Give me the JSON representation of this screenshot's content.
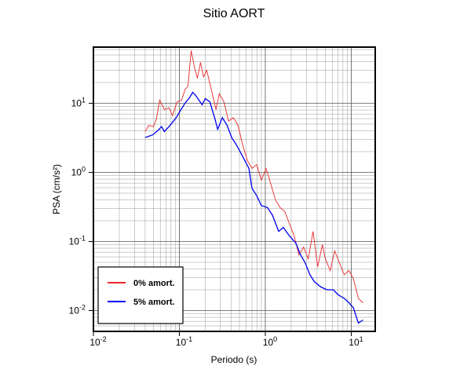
{
  "chart_data": {
    "type": "line",
    "title": "Sitio AORT",
    "x_label": "Periodo (s)",
    "y_label": "PSA (cm/s²)",
    "log_x": true,
    "log_y": true,
    "grid": true,
    "minor_grid": true,
    "legend": "lower left",
    "xlim": [
      0.01,
      19
    ],
    "ylim": [
      0.005,
      65
    ],
    "xticks": [
      {
        "value": 0.01,
        "label": "10",
        "exponent": "-2"
      },
      {
        "value": 0.1,
        "label": "10",
        "exponent": "-1"
      },
      {
        "value": 1,
        "label": "10",
        "exponent": "0"
      },
      {
        "value": 10,
        "label": "10",
        "exponent": "1"
      }
    ],
    "yticks": [
      {
        "value": 0.01,
        "label": "10",
        "exponent": "-2"
      },
      {
        "value": 0.1,
        "label": "10",
        "exponent": "-1"
      },
      {
        "value": 1,
        "label": "10",
        "exponent": "0"
      },
      {
        "value": 10,
        "label": "10",
        "exponent": "1"
      }
    ],
    "series": [
      {
        "name": "0% amort.",
        "color": "#e8282a",
        "x": [
          0.04,
          0.044,
          0.05,
          0.054,
          0.059,
          0.067,
          0.076,
          0.083,
          0.094,
          0.106,
          0.116,
          0.126,
          0.137,
          0.149,
          0.162,
          0.176,
          0.191,
          0.208,
          0.236,
          0.267,
          0.291,
          0.33,
          0.374,
          0.424,
          0.481,
          0.545,
          0.618,
          0.7,
          0.794,
          0.9,
          1.02,
          1.16,
          1.31,
          1.49,
          1.69,
          1.91,
          2.17,
          2.46,
          2.79,
          3.16,
          3.59,
          4.07,
          4.61,
          5.0,
          5.7,
          6.4,
          7.3,
          8.3,
          9.4,
          10.6,
          12.1,
          13.7
        ],
        "values": [
          3.9,
          4.8,
          4.6,
          5.9,
          11.1,
          8.1,
          8.6,
          6.6,
          10.5,
          11.1,
          15.6,
          17.8,
          58,
          34,
          23,
          39,
          24,
          30,
          15.6,
          8.1,
          13.7,
          10.5,
          5.5,
          6.2,
          4.8,
          2.5,
          1.48,
          1.14,
          1.3,
          0.77,
          1.14,
          0.68,
          0.4,
          0.31,
          0.27,
          0.18,
          0.12,
          0.064,
          0.083,
          0.056,
          0.14,
          0.043,
          0.09,
          0.056,
          0.038,
          0.073,
          0.049,
          0.033,
          0.038,
          0.029,
          0.015,
          0.013
        ]
      },
      {
        "name": "5% amort.",
        "color": "#0000ee",
        "x": [
          0.04,
          0.049,
          0.057,
          0.062,
          0.067,
          0.076,
          0.083,
          0.092,
          0.102,
          0.116,
          0.131,
          0.143,
          0.155,
          0.169,
          0.184,
          0.2,
          0.226,
          0.257,
          0.279,
          0.316,
          0.359,
          0.406,
          0.461,
          0.545,
          0.644,
          0.7,
          0.794,
          0.9,
          1.06,
          1.21,
          1.43,
          1.62,
          1.91,
          2.26,
          2.57,
          2.91,
          3.3,
          3.74,
          4.42,
          5.2,
          6.2,
          7.0,
          8.3,
          9.4,
          10.6,
          12.1,
          13.7
        ],
        "values": [
          3.2,
          3.5,
          4.1,
          4.6,
          3.9,
          4.6,
          5.3,
          6.2,
          7.7,
          10,
          12,
          14.4,
          13,
          11.1,
          9.5,
          11.7,
          10.5,
          6.2,
          4.2,
          6.2,
          4.8,
          3.2,
          2.5,
          1.7,
          1.14,
          0.59,
          0.46,
          0.33,
          0.31,
          0.24,
          0.14,
          0.16,
          0.12,
          0.095,
          0.064,
          0.049,
          0.033,
          0.026,
          0.022,
          0.02,
          0.02,
          0.017,
          0.015,
          0.013,
          0.011,
          0.0066,
          0.0073
        ]
      }
    ]
  }
}
